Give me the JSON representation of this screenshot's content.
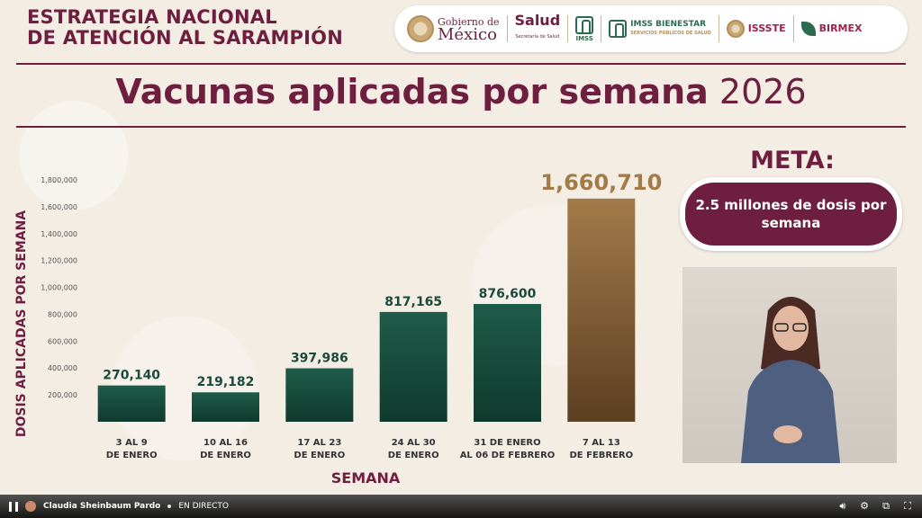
{
  "header": {
    "title_line1": "ESTRATEGIA NACIONAL",
    "title_line2": "DE ATENCIÓN AL SARAMPIÓN"
  },
  "logos": {
    "gobierno_small": "Gobierno de",
    "gobierno_big": "México",
    "salud": "Salud",
    "salud_sub": "Secretaría de Salud",
    "imss": "IMSS",
    "bienestar": "IMSS BIENESTAR",
    "bienestar_sub": "SERVICIOS PÚBLICOS DE SALUD",
    "issste": "ISSSTE",
    "birmex": "BIRMEX"
  },
  "main_title": {
    "bold": "Vacunas aplicadas por semana",
    "year": "2026"
  },
  "meta": {
    "label": "META:",
    "text": "2.5 millones de dosis por semana"
  },
  "player": {
    "channel": "Claudia Sheinbaum Pardo",
    "status": "EN DIRECTO"
  },
  "colors": {
    "maroon": "#6e1f3f",
    "bar_green_top": "#1f5c4a",
    "bar_green_bottom": "#0f3a2d",
    "bar_gold_top": "#a37b4a",
    "bar_gold_bottom": "#5b3f22",
    "gold_label": "#a37b4a",
    "dark_label": "#1b4a3c"
  },
  "chart_data": {
    "type": "bar",
    "categories": [
      [
        "3 AL 9",
        "DE ENERO"
      ],
      [
        "10 AL 16",
        "DE ENERO"
      ],
      [
        "17 AL 23",
        "DE ENERO"
      ],
      [
        "24 AL 30",
        "DE ENERO"
      ],
      [
        "31  DE ENERO",
        "AL 06 DE FEBRERO"
      ],
      [
        "7 AL 13",
        "DE FEBRERO"
      ]
    ],
    "values": [
      270140,
      219182,
      397986,
      817165,
      876600,
      1660710
    ],
    "data_labels": [
      "270,140",
      "219,182",
      "397,986",
      "817,165",
      "876,600",
      "1,660,710"
    ],
    "highlight_index": 5,
    "xlabel": "SEMANA",
    "ylabel": "DOSIS APLICADAS POR SEMANA",
    "ylim": [
      0,
      1800000
    ],
    "yticks": [
      200000,
      400000,
      600000,
      800000,
      1000000,
      1200000,
      1400000,
      1600000,
      1800000
    ],
    "ytick_labels": [
      "200,000",
      "400,000",
      "600,000",
      "800,000",
      "1,000,000",
      "1,200,000",
      "1,400,000",
      "1,600,000",
      "1,800,000"
    ],
    "grid": false,
    "legend": "none"
  }
}
